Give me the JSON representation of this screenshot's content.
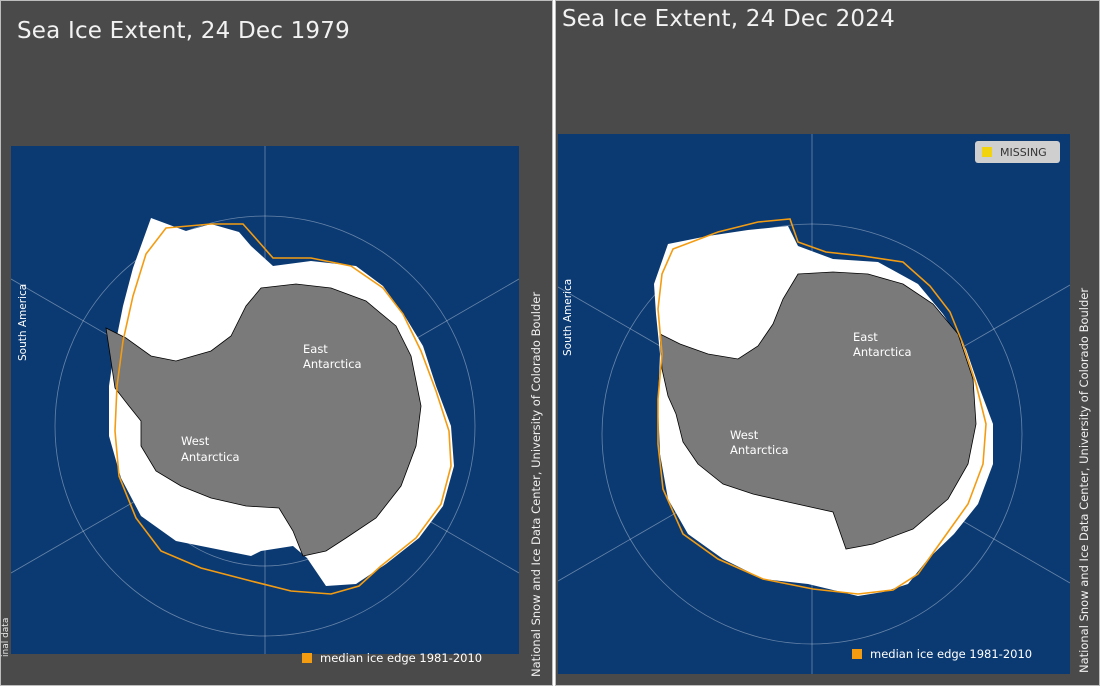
{
  "panels": [
    {
      "title": "Sea Ice Extent, 24 Dec 1979",
      "labels": {
        "south_america": "South America",
        "east_antarctica_line1": "East",
        "east_antarctica_line2": "Antarctica",
        "west_antarctica_line1": "West",
        "west_antarctica_line2": "Antarctica"
      },
      "legend": "median ice edge 1981-2010",
      "credit": "National Snow and Ice Data Center, University of Colorado Boulder",
      "edge_text": "inal data"
    },
    {
      "title": "Sea Ice Extent, 24 Dec 2024",
      "labels": {
        "south_america": "South America",
        "east_antarctica_line1": "East",
        "east_antarctica_line2": "Antarctica",
        "west_antarctica_line1": "West",
        "west_antarctica_line2": "Antarctica"
      },
      "legend": "median ice edge 1981-2010",
      "credit": "National Snow and Ice Data Center, University of Colorado Boulder",
      "missing_label": "MISSING"
    }
  ],
  "colors": {
    "background": "#4a4a4a",
    "ocean": "#0b3a73",
    "ice": "#ffffff",
    "land": "#7a7a7a",
    "median_edge": "#f39c12",
    "missing": "#f2d30f"
  }
}
